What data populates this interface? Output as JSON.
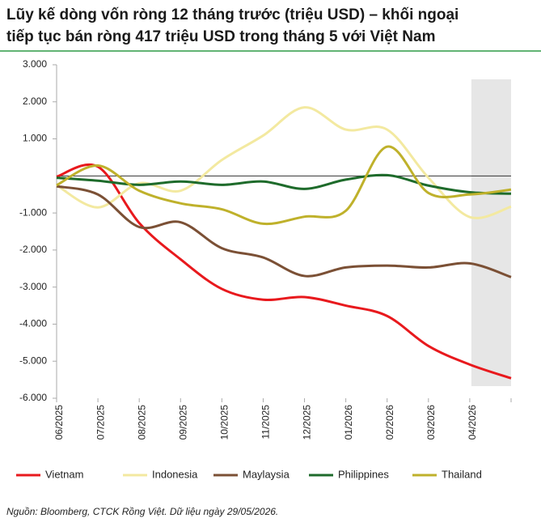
{
  "chart_data": {
    "type": "line",
    "title": [
      "Lũy kế dòng vốn ròng 12 tháng trước (triệu USD) – khối ngoại",
      "tiếp tục bán ròng 417 triệu USD trong tháng 5 với Việt Nam"
    ],
    "categories": [
      "06/2025",
      "07/2025",
      "08/2025",
      "09/2025",
      "10/2025",
      "11/2025",
      "12/2025",
      "01/2026",
      "02/2026",
      "03/2026",
      "04/2026",
      null
    ],
    "series": [
      {
        "name": "Vietnam",
        "color": "#e8191d",
        "values": [
          -20,
          250,
          -1270,
          -2250,
          -3050,
          -3340,
          -3270,
          -3500,
          -3780,
          -4590,
          -5090,
          -5460
        ]
      },
      {
        "name": "Indonesia",
        "color": "#f3e9a0",
        "values": [
          -250,
          -850,
          -200,
          -400,
          430,
          1090,
          1850,
          1250,
          1250,
          -50,
          -1110,
          -830
        ]
      },
      {
        "name": "Maylaysia",
        "color": "#7b5035",
        "values": [
          -280,
          -500,
          -1380,
          -1250,
          -1950,
          -2200,
          -2700,
          -2470,
          -2420,
          -2470,
          -2360,
          -2730
        ]
      },
      {
        "name": "Philippines",
        "color": "#1e6b2b",
        "values": [
          -50,
          -130,
          -240,
          -150,
          -240,
          -150,
          -350,
          -100,
          20,
          -260,
          -440,
          -480
        ]
      },
      {
        "name": "Thailand",
        "color": "#bfb12b",
        "values": [
          -250,
          280,
          -400,
          -740,
          -900,
          -1290,
          -1100,
          -940,
          790,
          -460,
          -500,
          -370
        ]
      }
    ],
    "ylim": [
      -6000,
      3000
    ],
    "yticks": [
      {
        "value": 3000,
        "label": "3.000"
      },
      {
        "value": 2000,
        "label": "2.000"
      },
      {
        "value": 1000,
        "label": "1.000"
      },
      {
        "value": -1000,
        "label": "-1.000"
      },
      {
        "value": -2000,
        "label": "-2.000"
      },
      {
        "value": -3000,
        "label": "-3.000"
      },
      {
        "value": -4000,
        "label": "-4.000"
      },
      {
        "value": -5000,
        "label": "-5.000"
      },
      {
        "value": -6000,
        "label": "-6.000"
      }
    ],
    "legend": "bottom",
    "source": "Nguồn: Bloomberg, CTCK Rồng Việt. Dữ liệu ngày 29/05/2026."
  }
}
